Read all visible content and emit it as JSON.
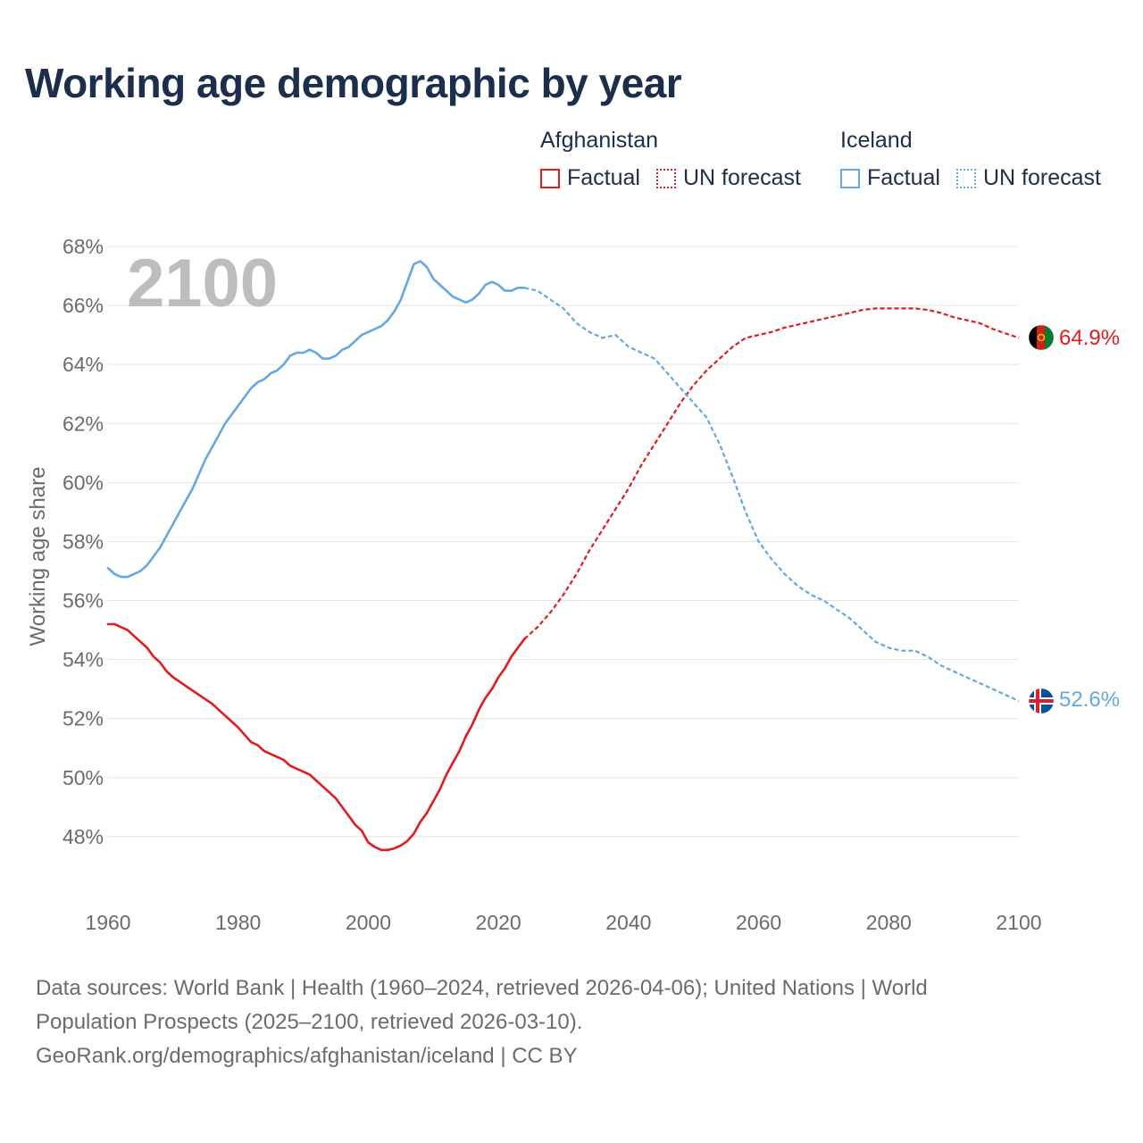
{
  "title": "Working age demographic by year",
  "legend": [
    {
      "country": "Afghanistan",
      "factual_label": "Factual",
      "forecast_label": "UN forecast",
      "color": "#e41a1c"
    },
    {
      "country": "Iceland",
      "factual_label": "Factual",
      "forecast_label": "UN forecast",
      "color": "#62a8e5"
    }
  ],
  "chart_data": {
    "type": "line",
    "title": "Working age demographic by year",
    "xlabel": "",
    "ylabel": "Working age share",
    "xlim": [
      1960,
      2100
    ],
    "ylim": [
      46,
      68
    ],
    "x_ticks": [
      1960,
      1980,
      2000,
      2020,
      2040,
      2060,
      2080,
      2100
    ],
    "y_ticks": [
      48,
      50,
      52,
      54,
      56,
      58,
      60,
      62,
      64,
      66,
      68
    ],
    "y_tick_suffix": "%",
    "year_watermark": "2100",
    "forecast_start_year": 2024,
    "grid": true,
    "series": [
      {
        "name": "Afghanistan",
        "color": "#e41a1c",
        "end_label": "64.9%",
        "flag": "afghanistan-flag",
        "points": [
          [
            1960,
            55.2
          ],
          [
            1961,
            55.2
          ],
          [
            1963,
            55.0
          ],
          [
            1964,
            54.8
          ],
          [
            1966,
            54.4
          ],
          [
            1967,
            54.1
          ],
          [
            1968,
            53.9
          ],
          [
            1969,
            53.6
          ],
          [
            1970,
            53.4
          ],
          [
            1972,
            53.1
          ],
          [
            1974,
            52.8
          ],
          [
            1976,
            52.5
          ],
          [
            1978,
            52.1
          ],
          [
            1980,
            51.7
          ],
          [
            1982,
            51.2
          ],
          [
            1983,
            51.1
          ],
          [
            1984,
            50.9
          ],
          [
            1986,
            50.7
          ],
          [
            1987,
            50.6
          ],
          [
            1988,
            50.4
          ],
          [
            1990,
            50.2
          ],
          [
            1991,
            50.1
          ],
          [
            1992,
            49.9
          ],
          [
            1994,
            49.5
          ],
          [
            1995,
            49.3
          ],
          [
            1996,
            49.0
          ],
          [
            1998,
            48.4
          ],
          [
            1999,
            48.2
          ],
          [
            2000,
            47.8
          ],
          [
            2001,
            47.65
          ],
          [
            2002,
            47.55
          ],
          [
            2003,
            47.55
          ],
          [
            2004,
            47.6
          ],
          [
            2005,
            47.7
          ],
          [
            2006,
            47.85
          ],
          [
            2007,
            48.1
          ],
          [
            2008,
            48.5
          ],
          [
            2009,
            48.8
          ],
          [
            2010,
            49.2
          ],
          [
            2011,
            49.6
          ],
          [
            2012,
            50.1
          ],
          [
            2013,
            50.5
          ],
          [
            2014,
            50.9
          ],
          [
            2015,
            51.4
          ],
          [
            2016,
            51.8
          ],
          [
            2017,
            52.3
          ],
          [
            2018,
            52.7
          ],
          [
            2019,
            53.0
          ],
          [
            2020,
            53.4
          ],
          [
            2021,
            53.7
          ],
          [
            2022,
            54.1
          ],
          [
            2023,
            54.4
          ],
          [
            2024,
            54.7
          ]
        ],
        "forecast_points": [
          [
            2024,
            54.7
          ],
          [
            2026,
            55.1
          ],
          [
            2028,
            55.6
          ],
          [
            2030,
            56.2
          ],
          [
            2032,
            56.9
          ],
          [
            2034,
            57.7
          ],
          [
            2036,
            58.4
          ],
          [
            2038,
            59.1
          ],
          [
            2040,
            59.8
          ],
          [
            2042,
            60.6
          ],
          [
            2044,
            61.3
          ],
          [
            2046,
            62.0
          ],
          [
            2048,
            62.7
          ],
          [
            2050,
            63.3
          ],
          [
            2052,
            63.8
          ],
          [
            2054,
            64.2
          ],
          [
            2056,
            64.6
          ],
          [
            2058,
            64.9
          ],
          [
            2060,
            65.0
          ],
          [
            2062,
            65.1
          ],
          [
            2064,
            65.25
          ],
          [
            2066,
            65.35
          ],
          [
            2068,
            65.45
          ],
          [
            2070,
            65.55
          ],
          [
            2072,
            65.65
          ],
          [
            2074,
            65.75
          ],
          [
            2076,
            65.85
          ],
          [
            2078,
            65.9
          ],
          [
            2080,
            65.9
          ],
          [
            2082,
            65.9
          ],
          [
            2084,
            65.9
          ],
          [
            2086,
            65.85
          ],
          [
            2088,
            65.75
          ],
          [
            2090,
            65.6
          ],
          [
            2092,
            65.5
          ],
          [
            2094,
            65.4
          ],
          [
            2096,
            65.2
          ],
          [
            2098,
            65.05
          ],
          [
            2100,
            64.9
          ]
        ]
      },
      {
        "name": "Iceland",
        "color": "#62a8e5",
        "end_label": "52.6%",
        "flag": "iceland-flag",
        "points": [
          [
            1960,
            57.1
          ],
          [
            1961,
            56.9
          ],
          [
            1962,
            56.8
          ],
          [
            1963,
            56.8
          ],
          [
            1964,
            56.9
          ],
          [
            1965,
            57.0
          ],
          [
            1966,
            57.2
          ],
          [
            1967,
            57.5
          ],
          [
            1968,
            57.8
          ],
          [
            1969,
            58.2
          ],
          [
            1970,
            58.6
          ],
          [
            1971,
            59.0
          ],
          [
            1972,
            59.4
          ],
          [
            1973,
            59.8
          ],
          [
            1974,
            60.3
          ],
          [
            1975,
            60.8
          ],
          [
            1976,
            61.2
          ],
          [
            1977,
            61.6
          ],
          [
            1978,
            62.0
          ],
          [
            1979,
            62.3
          ],
          [
            1980,
            62.6
          ],
          [
            1981,
            62.9
          ],
          [
            1982,
            63.2
          ],
          [
            1983,
            63.4
          ],
          [
            1984,
            63.5
          ],
          [
            1985,
            63.7
          ],
          [
            1986,
            63.8
          ],
          [
            1987,
            64.0
          ],
          [
            1988,
            64.3
          ],
          [
            1989,
            64.4
          ],
          [
            1990,
            64.4
          ],
          [
            1991,
            64.5
          ],
          [
            1992,
            64.4
          ],
          [
            1993,
            64.2
          ],
          [
            1994,
            64.2
          ],
          [
            1995,
            64.3
          ],
          [
            1996,
            64.5
          ],
          [
            1997,
            64.6
          ],
          [
            1998,
            64.8
          ],
          [
            1999,
            65.0
          ],
          [
            2000,
            65.1
          ],
          [
            2001,
            65.2
          ],
          [
            2002,
            65.3
          ],
          [
            2003,
            65.5
          ],
          [
            2004,
            65.8
          ],
          [
            2005,
            66.2
          ],
          [
            2006,
            66.8
          ],
          [
            2007,
            67.4
          ],
          [
            2008,
            67.5
          ],
          [
            2009,
            67.3
          ],
          [
            2010,
            66.9
          ],
          [
            2011,
            66.7
          ],
          [
            2012,
            66.5
          ],
          [
            2013,
            66.3
          ],
          [
            2014,
            66.2
          ],
          [
            2015,
            66.1
          ],
          [
            2016,
            66.2
          ],
          [
            2017,
            66.4
          ],
          [
            2018,
            66.7
          ],
          [
            2019,
            66.8
          ],
          [
            2020,
            66.7
          ],
          [
            2021,
            66.5
          ],
          [
            2022,
            66.5
          ],
          [
            2023,
            66.6
          ],
          [
            2024,
            66.6
          ]
        ],
        "forecast_points": [
          [
            2024,
            66.6
          ],
          [
            2026,
            66.5
          ],
          [
            2028,
            66.2
          ],
          [
            2030,
            65.9
          ],
          [
            2032,
            65.4
          ],
          [
            2034,
            65.1
          ],
          [
            2036,
            64.9
          ],
          [
            2038,
            65.0
          ],
          [
            2040,
            64.6
          ],
          [
            2042,
            64.4
          ],
          [
            2044,
            64.2
          ],
          [
            2046,
            63.7
          ],
          [
            2048,
            63.2
          ],
          [
            2050,
            62.7
          ],
          [
            2052,
            62.2
          ],
          [
            2054,
            61.3
          ],
          [
            2056,
            60.2
          ],
          [
            2058,
            59.0
          ],
          [
            2060,
            58.0
          ],
          [
            2062,
            57.4
          ],
          [
            2064,
            56.9
          ],
          [
            2066,
            56.5
          ],
          [
            2068,
            56.2
          ],
          [
            2070,
            56.0
          ],
          [
            2072,
            55.7
          ],
          [
            2074,
            55.4
          ],
          [
            2076,
            55.0
          ],
          [
            2078,
            54.6
          ],
          [
            2080,
            54.4
          ],
          [
            2082,
            54.3
          ],
          [
            2084,
            54.3
          ],
          [
            2086,
            54.1
          ],
          [
            2088,
            53.8
          ],
          [
            2090,
            53.6
          ],
          [
            2092,
            53.4
          ],
          [
            2094,
            53.2
          ],
          [
            2096,
            53.0
          ],
          [
            2098,
            52.8
          ],
          [
            2100,
            52.6
          ]
        ]
      }
    ]
  },
  "footer": {
    "line1": "Data sources: World Bank | Health (1960–2024, retrieved 2026-04-06); United Nations | World",
    "line2": "Population Prospects (2025–2100, retrieved 2026-03-10).",
    "line3": "GeoRank.org/demographics/afghanistan/iceland | CC BY"
  }
}
